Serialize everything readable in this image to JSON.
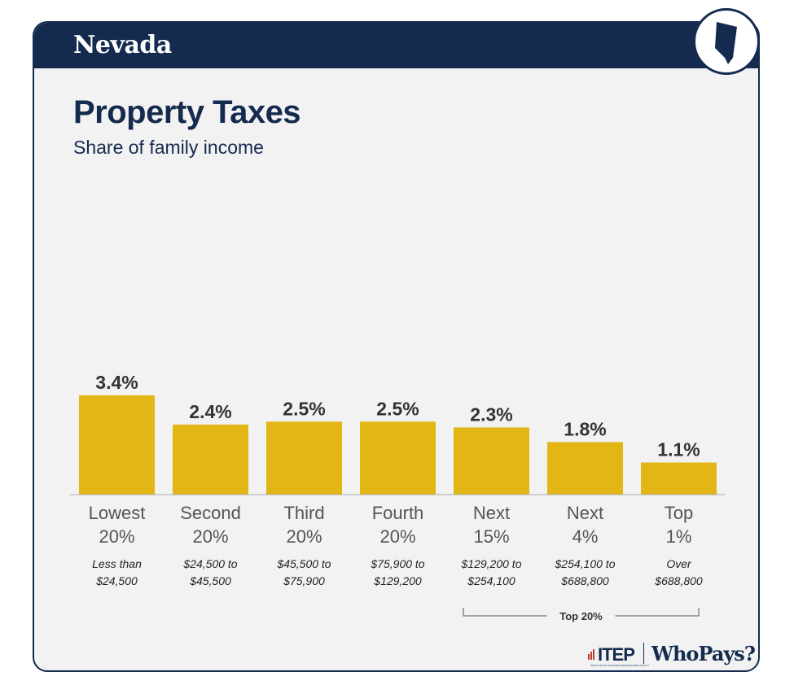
{
  "header": {
    "state": "Nevada"
  },
  "title": "Property Taxes",
  "subtitle": "Share of family income",
  "chart_data": {
    "type": "bar",
    "categories": [
      [
        "Lowest",
        "20%"
      ],
      [
        "Second",
        "20%"
      ],
      [
        "Third",
        "20%"
      ],
      [
        "Fourth",
        "20%"
      ],
      [
        "Next",
        "15%"
      ],
      [
        "Next",
        "4%"
      ],
      [
        "Top",
        "1%"
      ]
    ],
    "income_ranges": [
      [
        "Less than",
        "$24,500"
      ],
      [
        "$24,500 to",
        "$45,500"
      ],
      [
        "$45,500 to",
        "$75,900"
      ],
      [
        "$75,900 to",
        "$129,200"
      ],
      [
        "$129,200 to",
        "$254,100"
      ],
      [
        "$254,100 to",
        "$688,800"
      ],
      [
        "Over",
        "$688,800"
      ]
    ],
    "values": [
      3.4,
      2.4,
      2.5,
      2.5,
      2.3,
      1.8,
      1.1
    ],
    "value_labels": [
      "3.4%",
      "2.4%",
      "2.5%",
      "2.5%",
      "2.3%",
      "1.8%",
      "1.1%"
    ],
    "bar_color": "#e2b615",
    "group_bracket": {
      "label": "Top 20%",
      "from_index": 4,
      "to_index": 6
    },
    "ylim": [
      0,
      3.4
    ],
    "grid": false,
    "legend": "none"
  },
  "footer": {
    "itep": "ITEP",
    "itep_tagline": "INSTITUTE ON TAXATION AND ECONOMIC POLICY",
    "whopays": "WhoPays?"
  },
  "colors": {
    "navy": "#142b4f",
    "card_bg": "#f2f2f2",
    "text": "#333333"
  }
}
